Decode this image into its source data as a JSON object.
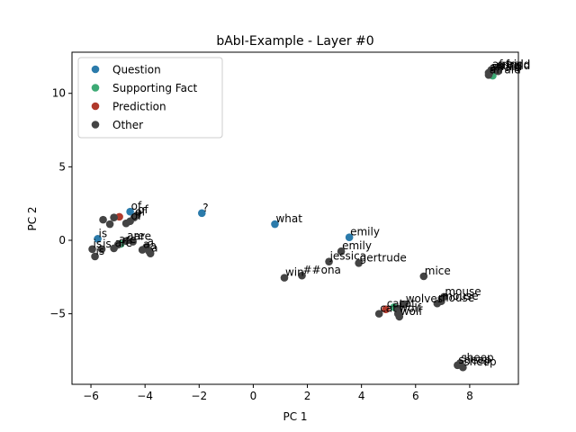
{
  "chart_data": {
    "type": "scatter",
    "title": "bAbI-Example - Layer #0",
    "xlabel": "PC 1",
    "ylabel": "PC 2",
    "xlim": [
      -6.7,
      9.8
    ],
    "ylim": [
      -9.8,
      12.8
    ],
    "x_ticks": [
      -6,
      -4,
      -2,
      0,
      2,
      4,
      6,
      8
    ],
    "y_ticks": [
      -5,
      0,
      5,
      10
    ],
    "grid": false,
    "legend_position": "top-left",
    "legend": [
      {
        "label": "Question",
        "color": "#2b7bab"
      },
      {
        "label": "Supporting Fact",
        "color": "#3daa75"
      },
      {
        "label": "Prediction",
        "color": "#b0392b"
      },
      {
        "label": "Other",
        "color": "#444444"
      }
    ],
    "series": [
      {
        "name": "Question",
        "color": "#2b7bab",
        "points": [
          {
            "x": -4.55,
            "y": 1.95,
            "label": "of"
          },
          {
            "x": -1.9,
            "y": 1.85,
            "label": "?"
          },
          {
            "x": 0.8,
            "y": 1.1,
            "label": "what"
          },
          {
            "x": 3.55,
            "y": 0.2,
            "label": "emily"
          },
          {
            "x": -5.75,
            "y": 0.1,
            "label": "is"
          }
        ]
      },
      {
        "name": "Supporting Fact",
        "color": "#3daa75",
        "points": [
          {
            "x": 8.85,
            "y": 11.2,
            "label": ""
          },
          {
            "x": -4.9,
            "y": -0.25,
            "label": ""
          },
          {
            "x": 5.2,
            "y": -4.55,
            "label": ""
          }
        ]
      },
      {
        "name": "Prediction",
        "color": "#b0392b",
        "points": [
          {
            "x": 4.9,
            "y": -4.7,
            "label": "cat"
          },
          {
            "x": -4.95,
            "y": 1.6,
            "label": ""
          }
        ]
      },
      {
        "name": "Other",
        "color": "#444444",
        "points": [
          {
            "x": 8.8,
            "y": 11.6,
            "label": "afraid"
          },
          {
            "x": 9.05,
            "y": 11.6,
            "label": "afraid"
          },
          {
            "x": 8.75,
            "y": 11.45,
            "label": "afraid"
          },
          {
            "x": 8.7,
            "y": 11.4,
            "label": "afraid"
          },
          {
            "x": 8.7,
            "y": 11.25,
            "label": "afraid"
          },
          {
            "x": 9.05,
            "y": 11.5,
            "label": "afraid"
          },
          {
            "x": -4.3,
            "y": 1.7,
            "label": "of"
          },
          {
            "x": -4.4,
            "y": 1.55,
            "label": "of"
          },
          {
            "x": -4.55,
            "y": 1.3,
            "label": "of"
          },
          {
            "x": -4.7,
            "y": 1.15,
            "label": ""
          },
          {
            "x": -5.15,
            "y": 1.55,
            "label": ""
          },
          {
            "x": -5.55,
            "y": 1.4,
            "label": ""
          },
          {
            "x": -5.3,
            "y": 1.1,
            "label": ""
          },
          {
            "x": -5.95,
            "y": -0.6,
            "label": "is"
          },
          {
            "x": -5.6,
            "y": -0.6,
            "label": "is"
          },
          {
            "x": -5.85,
            "y": -1.1,
            "label": "is"
          },
          {
            "x": -4.7,
            "y": -0.05,
            "label": "are"
          },
          {
            "x": -4.45,
            "y": -0.1,
            "label": "are"
          },
          {
            "x": -5.0,
            "y": -0.3,
            "label": "are"
          },
          {
            "x": -5.15,
            "y": -0.55,
            "label": "are"
          },
          {
            "x": -3.95,
            "y": -0.45,
            "label": "a"
          },
          {
            "x": -4.1,
            "y": -0.65,
            "label": "a"
          },
          {
            "x": -3.85,
            "y": -0.75,
            "label": "a"
          },
          {
            "x": -3.8,
            "y": -0.9,
            "label": "a"
          },
          {
            "x": 3.25,
            "y": -0.75,
            "label": "emily"
          },
          {
            "x": 2.8,
            "y": -1.45,
            "label": "jessica"
          },
          {
            "x": 3.9,
            "y": -1.55,
            "label": "gertrude"
          },
          {
            "x": 1.15,
            "y": -2.55,
            "label": "win"
          },
          {
            "x": 1.8,
            "y": -2.4,
            "label": "##ona"
          },
          {
            "x": 6.3,
            "y": -2.45,
            "label": "mice"
          },
          {
            "x": 7.05,
            "y": -3.85,
            "label": "mouse"
          },
          {
            "x": 6.95,
            "y": -4.15,
            "label": "mouse"
          },
          {
            "x": 6.8,
            "y": -4.3,
            "label": "mouse"
          },
          {
            "x": 5.6,
            "y": -4.35,
            "label": "wolves"
          },
          {
            "x": 5.35,
            "y": -4.65,
            "label": "cat"
          },
          {
            "x": 5.35,
            "y": -5.0,
            "label": "wolf"
          },
          {
            "x": 5.4,
            "y": -5.2,
            "label": "wolf"
          },
          {
            "x": 4.65,
            "y": -5.0,
            "label": "cat"
          },
          {
            "x": 7.65,
            "y": -8.35,
            "label": "sheep"
          },
          {
            "x": 7.55,
            "y": -8.5,
            "label": "sheep"
          },
          {
            "x": 7.75,
            "y": -8.65,
            "label": "sheep"
          }
        ]
      }
    ]
  }
}
